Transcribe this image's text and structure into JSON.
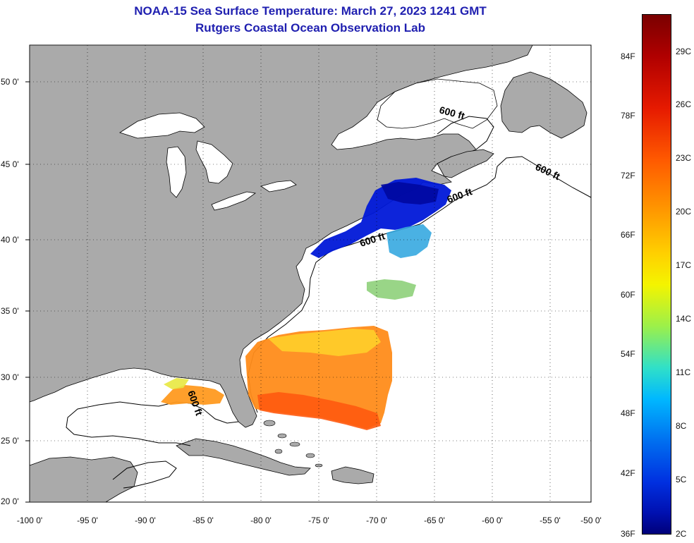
{
  "title": "NOAA-15 Sea Surface Temperature:  March 27, 2023 1241 GMT",
  "subtitle": "Rutgers Coastal Ocean Observation Lab",
  "lat_labels": [
    "50 0'",
    "45 0'",
    "40 0'",
    "35 0'",
    "30 0'",
    "25 0'",
    "20 0'"
  ],
  "lon_labels": [
    "-100 0'",
    "-95 0'",
    "-90 0'",
    "-85 0'",
    "-80 0'",
    "-75 0'",
    "-70 0'",
    "-65 0'",
    "-60 0'",
    "-55 0'",
    "-50 0'"
  ],
  "colorbar": {
    "fahrenheit": [
      "84F",
      "78F",
      "72F",
      "66F",
      "60F",
      "54F",
      "48F",
      "42F",
      "36F"
    ],
    "celsius": [
      "29C",
      "26C",
      "23C",
      "20C",
      "17C",
      "14C",
      "11C",
      "8C",
      "5C",
      "2C"
    ]
  },
  "contour_labels": [
    "600 ft",
    "600 ft",
    "600 ft",
    "600 ft",
    "600 ft"
  ],
  "colors": {
    "land": "#aaaaaa",
    "water": "#ffffff",
    "title": "#1f1fb0",
    "coast": "#000000"
  }
}
